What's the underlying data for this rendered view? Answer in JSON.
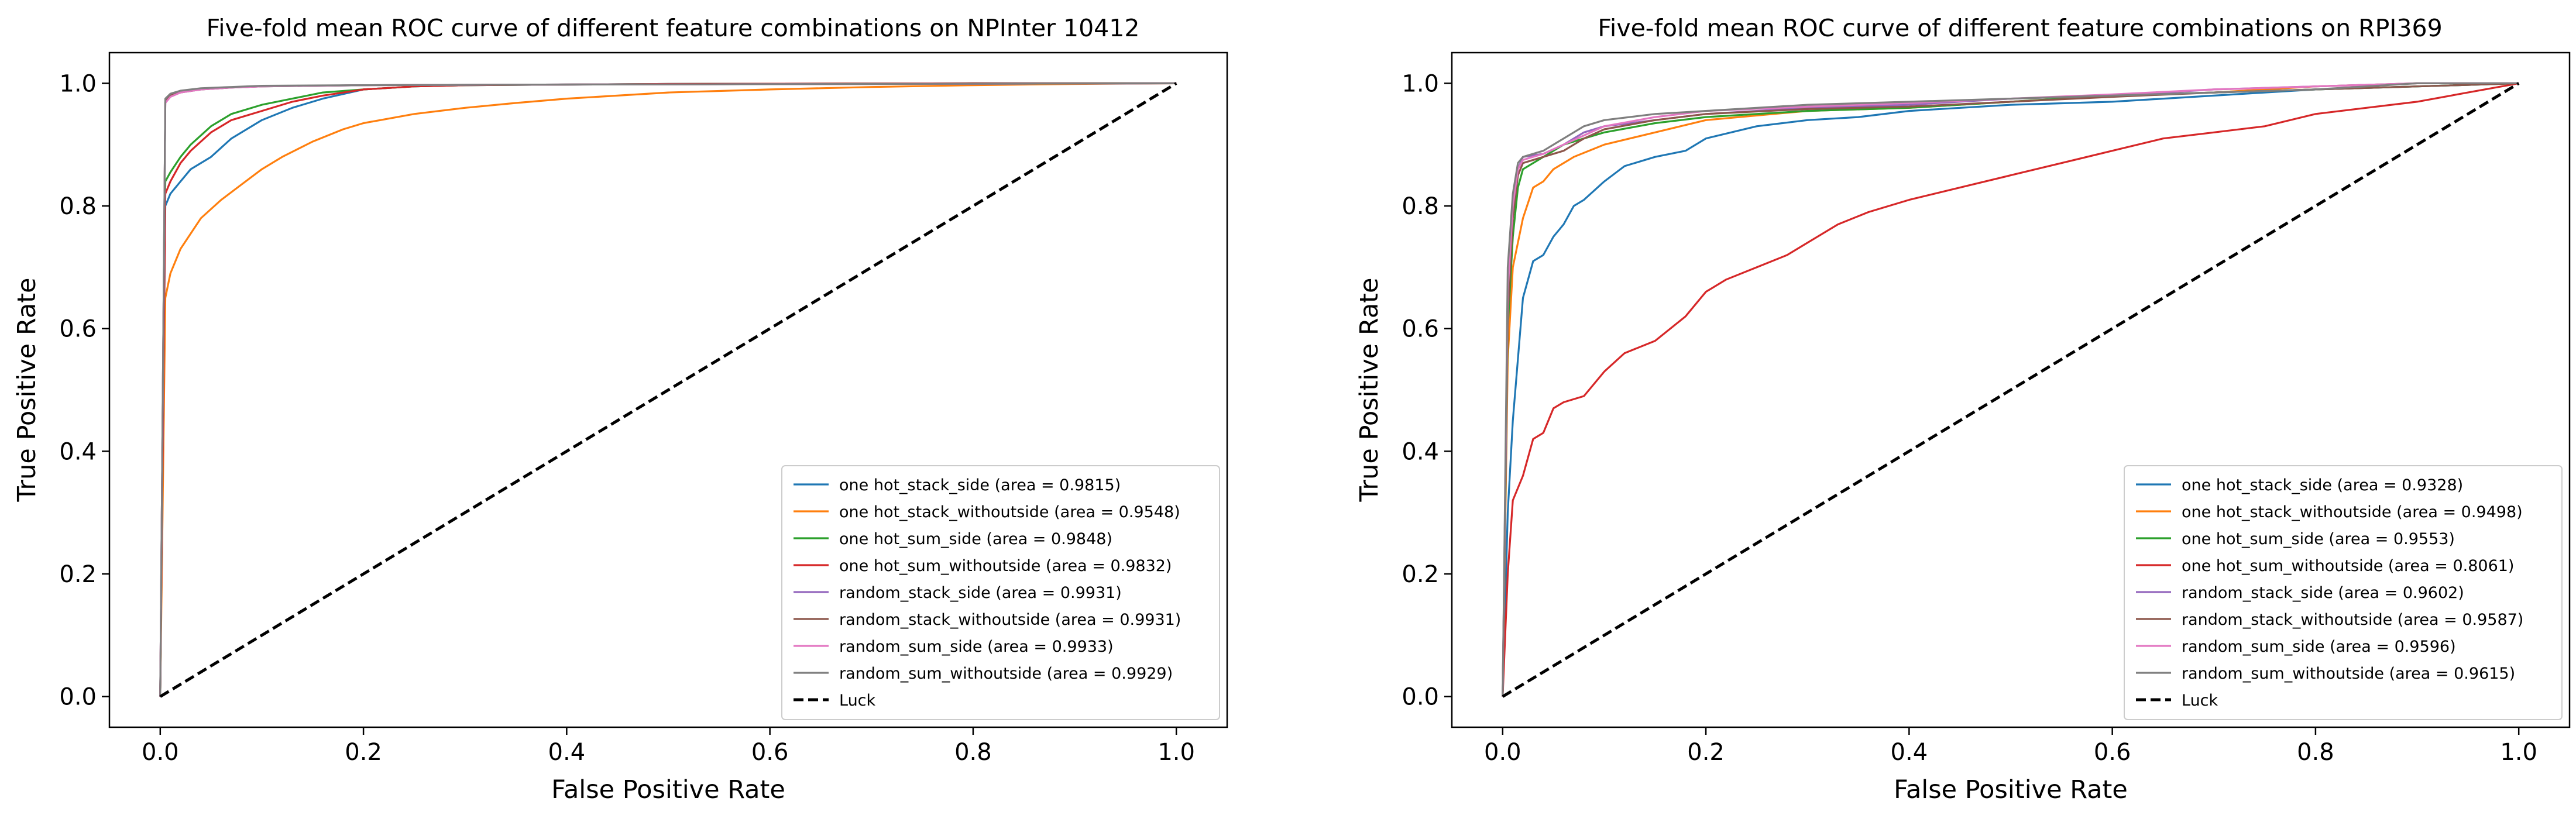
{
  "chart_data": [
    {
      "type": "line",
      "title": "Five-fold mean ROC curve of different feature combinations on NPInter 10412",
      "xlabel": "False Positive Rate",
      "ylabel": "True Positive Rate",
      "xlim": [
        -0.05,
        1.05
      ],
      "ylim": [
        -0.05,
        1.05
      ],
      "xticks": [
        0.0,
        0.2,
        0.4,
        0.6,
        0.8,
        1.0
      ],
      "yticks": [
        0.0,
        0.2,
        0.4,
        0.6,
        0.8,
        1.0
      ],
      "tick_labels": [
        "0.0",
        "0.2",
        "0.4",
        "0.6",
        "0.8",
        "1.0"
      ],
      "grid": false,
      "legend_position": "lower-right",
      "series": [
        {
          "name": "one hot_stack_side (area = 0.9815)",
          "color": "#1f77b4",
          "x": [
            0,
            0.005,
            0.01,
            0.02,
            0.03,
            0.05,
            0.07,
            0.1,
            0.13,
            0.16,
            0.2,
            0.25,
            0.3,
            0.5,
            0.8,
            1.0
          ],
          "y": [
            0,
            0.8,
            0.82,
            0.84,
            0.86,
            0.88,
            0.91,
            0.94,
            0.96,
            0.975,
            0.99,
            0.995,
            0.997,
            0.999,
            1.0,
            1.0
          ]
        },
        {
          "name": "one hot_stack_withoutside (area = 0.9548)",
          "color": "#ff7f0e",
          "x": [
            0,
            0.005,
            0.01,
            0.02,
            0.04,
            0.06,
            0.08,
            0.1,
            0.12,
            0.15,
            0.18,
            0.2,
            0.25,
            0.3,
            0.35,
            0.4,
            0.45,
            0.5,
            0.6,
            0.7,
            0.8,
            0.9,
            1.0
          ],
          "y": [
            0,
            0.65,
            0.69,
            0.73,
            0.78,
            0.81,
            0.835,
            0.86,
            0.88,
            0.905,
            0.925,
            0.935,
            0.95,
            0.96,
            0.968,
            0.975,
            0.98,
            0.985,
            0.99,
            0.994,
            0.997,
            0.999,
            1.0
          ]
        },
        {
          "name": "one hot_sum_side (area = 0.9848)",
          "color": "#2ca02c",
          "x": [
            0,
            0.005,
            0.01,
            0.02,
            0.03,
            0.05,
            0.07,
            0.1,
            0.13,
            0.16,
            0.2,
            0.25,
            0.3,
            0.5,
            0.8,
            1.0
          ],
          "y": [
            0,
            0.84,
            0.855,
            0.88,
            0.9,
            0.93,
            0.95,
            0.965,
            0.975,
            0.985,
            0.99,
            0.995,
            0.997,
            0.999,
            1.0,
            1.0
          ]
        },
        {
          "name": "one hot_sum_withoutside (area = 0.9832)",
          "color": "#d62728",
          "x": [
            0,
            0.005,
            0.01,
            0.02,
            0.03,
            0.05,
            0.07,
            0.1,
            0.13,
            0.16,
            0.2,
            0.25,
            0.3,
            0.5,
            0.8,
            1.0
          ],
          "y": [
            0,
            0.82,
            0.84,
            0.87,
            0.89,
            0.92,
            0.94,
            0.955,
            0.97,
            0.98,
            0.99,
            0.995,
            0.997,
            0.999,
            1.0,
            1.0
          ]
        },
        {
          "name": "random_stack_side (area = 0.9931)",
          "color": "#9467bd",
          "x": [
            0,
            0.005,
            0.01,
            0.02,
            0.04,
            0.07,
            0.1,
            0.2,
            0.4,
            0.7,
            1.0
          ],
          "y": [
            0,
            0.97,
            0.98,
            0.985,
            0.99,
            0.993,
            0.995,
            0.997,
            0.998,
            0.999,
            1.0
          ]
        },
        {
          "name": "random_stack_withoutside (area = 0.9931)",
          "color": "#8c564b",
          "x": [
            0,
            0.005,
            0.01,
            0.02,
            0.04,
            0.07,
            0.1,
            0.2,
            0.4,
            0.7,
            1.0
          ],
          "y": [
            0,
            0.97,
            0.98,
            0.985,
            0.99,
            0.993,
            0.995,
            0.997,
            0.998,
            0.999,
            1.0
          ]
        },
        {
          "name": "random_sum_side (area = 0.9933)",
          "color": "#e377c2",
          "x": [
            0,
            0.005,
            0.01,
            0.02,
            0.04,
            0.07,
            0.1,
            0.2,
            0.4,
            0.7,
            1.0
          ],
          "y": [
            0,
            0.968,
            0.978,
            0.985,
            0.99,
            0.993,
            0.995,
            0.997,
            0.998,
            0.999,
            1.0
          ]
        },
        {
          "name": "random_sum_withoutside (area = 0.9929)",
          "color": "#7f7f7f",
          "x": [
            0,
            0.005,
            0.01,
            0.02,
            0.04,
            0.07,
            0.1,
            0.2,
            0.4,
            0.7,
            1.0
          ],
          "y": [
            0,
            0.975,
            0.983,
            0.988,
            0.992,
            0.994,
            0.996,
            0.997,
            0.998,
            0.999,
            1.0
          ]
        },
        {
          "name": "Luck",
          "color": "#000000",
          "dashed": true,
          "x": [
            0,
            1
          ],
          "y": [
            0,
            1
          ]
        }
      ]
    },
    {
      "type": "line",
      "title": "Five-fold mean ROC curve of different feature combinations on RPI369",
      "xlabel": "False Positive Rate",
      "ylabel": "True Positive Rate",
      "xlim": [
        -0.05,
        1.05
      ],
      "ylim": [
        -0.05,
        1.05
      ],
      "xticks": [
        0.0,
        0.2,
        0.4,
        0.6,
        0.8,
        1.0
      ],
      "yticks": [
        0.0,
        0.2,
        0.4,
        0.6,
        0.8,
        1.0
      ],
      "tick_labels": [
        "0.0",
        "0.2",
        "0.4",
        "0.6",
        "0.8",
        "1.0"
      ],
      "grid": false,
      "legend_position": "lower-right",
      "series": [
        {
          "name": "one hot_stack_side (area = 0.9328)",
          "color": "#1f77b4",
          "x": [
            0,
            0.005,
            0.01,
            0.02,
            0.03,
            0.04,
            0.05,
            0.06,
            0.07,
            0.08,
            0.1,
            0.12,
            0.15,
            0.18,
            0.2,
            0.25,
            0.3,
            0.35,
            0.4,
            0.5,
            0.6,
            0.7,
            0.8,
            0.9,
            1.0
          ],
          "y": [
            0,
            0.3,
            0.45,
            0.65,
            0.71,
            0.72,
            0.75,
            0.77,
            0.8,
            0.81,
            0.84,
            0.865,
            0.88,
            0.89,
            0.91,
            0.93,
            0.94,
            0.945,
            0.955,
            0.965,
            0.97,
            0.98,
            0.99,
            0.995,
            1.0
          ]
        },
        {
          "name": "one hot_stack_withoutside (area = 0.9498)",
          "color": "#ff7f0e",
          "x": [
            0,
            0.005,
            0.01,
            0.02,
            0.03,
            0.04,
            0.05,
            0.07,
            0.1,
            0.15,
            0.2,
            0.3,
            0.4,
            0.5,
            0.6,
            0.7,
            0.8,
            0.9,
            1.0
          ],
          "y": [
            0,
            0.55,
            0.7,
            0.78,
            0.83,
            0.84,
            0.86,
            0.88,
            0.9,
            0.92,
            0.94,
            0.955,
            0.96,
            0.97,
            0.98,
            0.985,
            0.995,
            1.0,
            1.0
          ]
        },
        {
          "name": "one hot_sum_side (area = 0.9553)",
          "color": "#2ca02c",
          "x": [
            0,
            0.005,
            0.01,
            0.015,
            0.02,
            0.04,
            0.06,
            0.08,
            0.1,
            0.15,
            0.2,
            0.3,
            0.4,
            0.5,
            0.6,
            0.7,
            0.8,
            0.9,
            1.0
          ],
          "y": [
            0,
            0.6,
            0.75,
            0.83,
            0.86,
            0.88,
            0.9,
            0.91,
            0.92,
            0.935,
            0.945,
            0.955,
            0.96,
            0.97,
            0.98,
            0.985,
            0.99,
            0.995,
            1.0
          ]
        },
        {
          "name": "one hot_sum_withoutside (area = 0.8061)",
          "color": "#d62728",
          "x": [
            0,
            0.005,
            0.01,
            0.02,
            0.03,
            0.04,
            0.05,
            0.06,
            0.08,
            0.1,
            0.12,
            0.15,
            0.18,
            0.2,
            0.22,
            0.25,
            0.28,
            0.3,
            0.33,
            0.36,
            0.4,
            0.45,
            0.5,
            0.55,
            0.6,
            0.65,
            0.7,
            0.75,
            0.8,
            0.85,
            0.9,
            0.95,
            1.0
          ],
          "y": [
            0,
            0.2,
            0.32,
            0.36,
            0.42,
            0.43,
            0.47,
            0.48,
            0.49,
            0.53,
            0.56,
            0.58,
            0.62,
            0.66,
            0.68,
            0.7,
            0.72,
            0.74,
            0.77,
            0.79,
            0.81,
            0.83,
            0.85,
            0.87,
            0.89,
            0.91,
            0.92,
            0.93,
            0.95,
            0.96,
            0.97,
            0.985,
            1.0
          ]
        },
        {
          "name": "random_stack_side (area = 0.9602)",
          "color": "#9467bd",
          "x": [
            0,
            0.005,
            0.01,
            0.015,
            0.02,
            0.04,
            0.06,
            0.08,
            0.1,
            0.15,
            0.2,
            0.3,
            0.4,
            0.5,
            0.6,
            0.7,
            0.8,
            0.9,
            1.0
          ],
          "y": [
            0,
            0.65,
            0.8,
            0.86,
            0.88,
            0.885,
            0.9,
            0.92,
            0.93,
            0.94,
            0.95,
            0.96,
            0.965,
            0.975,
            0.98,
            0.99,
            0.995,
            1.0,
            1.0
          ]
        },
        {
          "name": "random_stack_withoutside (area = 0.9587)",
          "color": "#8c564b",
          "x": [
            0,
            0.005,
            0.01,
            0.015,
            0.02,
            0.04,
            0.06,
            0.08,
            0.1,
            0.15,
            0.2,
            0.3,
            0.4,
            0.5,
            0.6,
            0.7,
            0.8,
            0.9,
            1.0
          ],
          "y": [
            0,
            0.62,
            0.78,
            0.85,
            0.87,
            0.88,
            0.89,
            0.91,
            0.925,
            0.94,
            0.95,
            0.958,
            0.962,
            0.97,
            0.978,
            0.985,
            0.99,
            0.995,
            1.0
          ]
        },
        {
          "name": "random_sum_side (area = 0.9596)",
          "color": "#e377c2",
          "x": [
            0,
            0.005,
            0.01,
            0.015,
            0.02,
            0.04,
            0.06,
            0.08,
            0.1,
            0.15,
            0.2,
            0.3,
            0.4,
            0.5,
            0.6,
            0.7,
            0.8,
            0.9,
            1.0
          ],
          "y": [
            0,
            0.66,
            0.8,
            0.86,
            0.875,
            0.885,
            0.9,
            0.915,
            0.93,
            0.945,
            0.955,
            0.962,
            0.968,
            0.975,
            0.982,
            0.99,
            0.995,
            1.0,
            1.0
          ]
        },
        {
          "name": "random_sum_withoutside (area = 0.9615)",
          "color": "#7f7f7f",
          "x": [
            0,
            0.005,
            0.01,
            0.015,
            0.02,
            0.04,
            0.06,
            0.08,
            0.1,
            0.15,
            0.2,
            0.3,
            0.4,
            0.5,
            0.6,
            0.7,
            0.8,
            0.9,
            1.0
          ],
          "y": [
            0,
            0.7,
            0.82,
            0.87,
            0.88,
            0.89,
            0.91,
            0.93,
            0.94,
            0.95,
            0.955,
            0.965,
            0.97,
            0.975,
            0.98,
            0.985,
            0.99,
            1.0,
            1.0
          ]
        },
        {
          "name": "Luck",
          "color": "#000000",
          "dashed": true,
          "x": [
            0,
            1
          ],
          "y": [
            0,
            1
          ]
        }
      ]
    }
  ]
}
